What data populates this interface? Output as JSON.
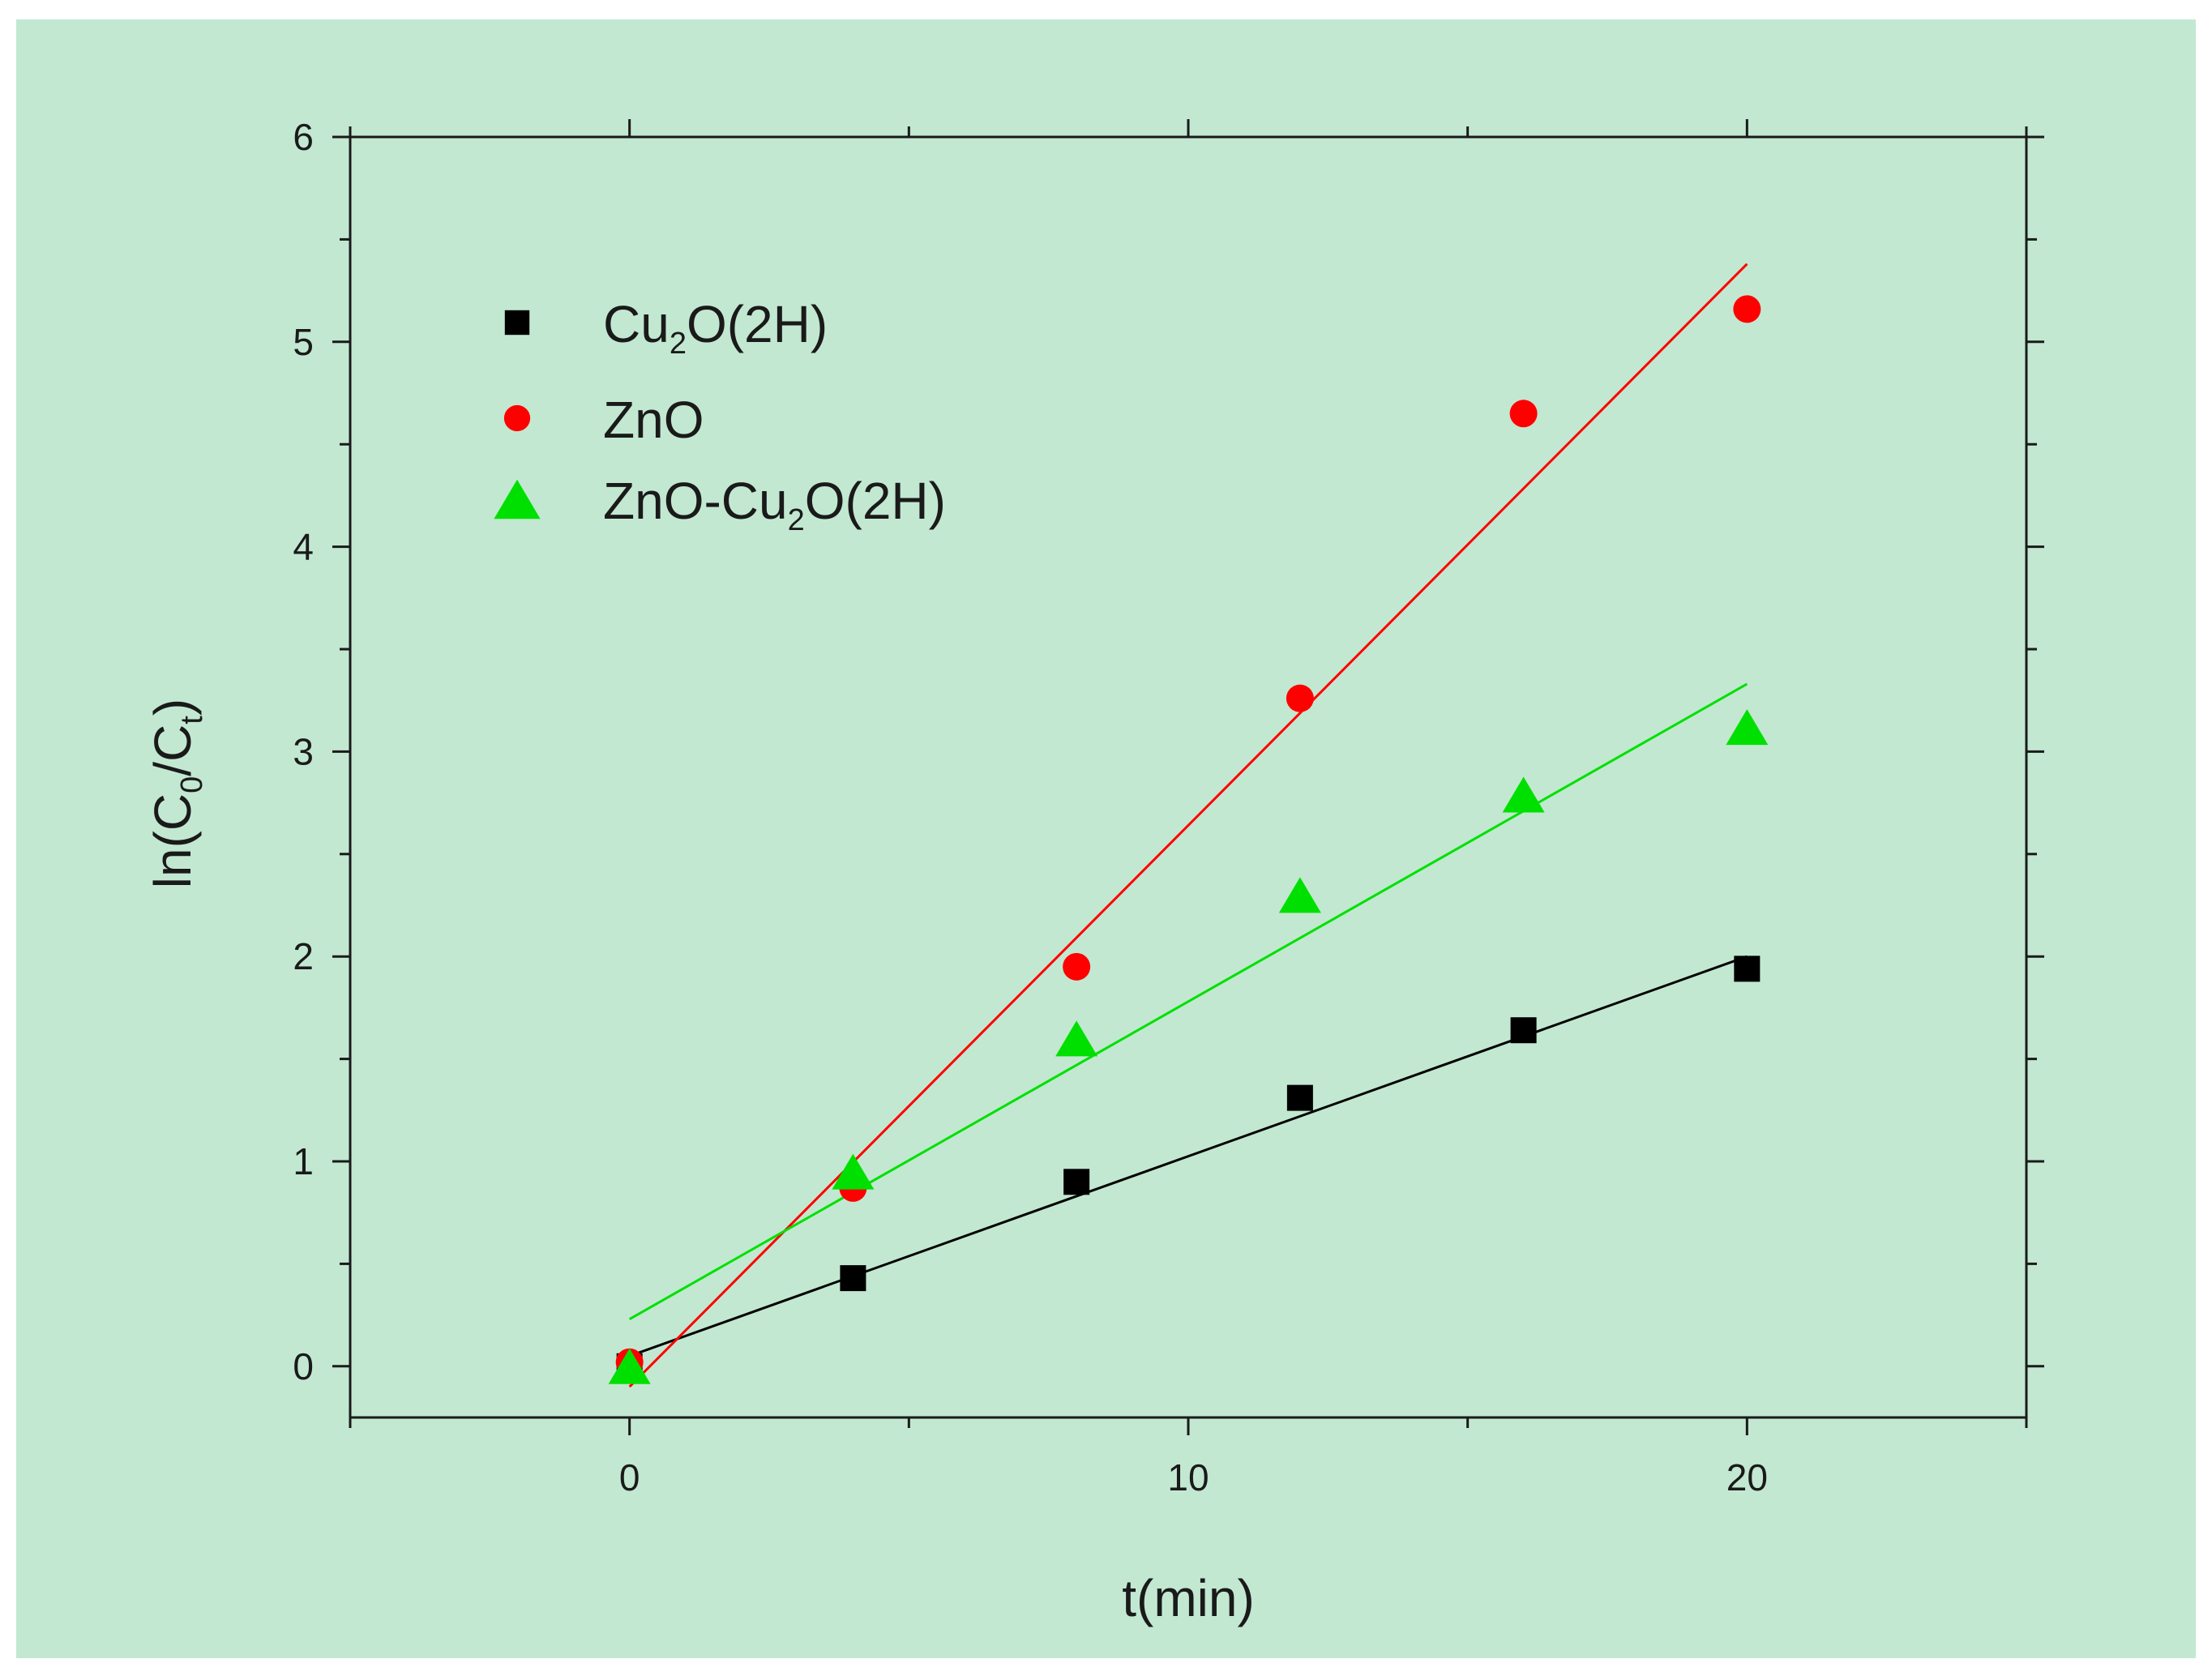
{
  "chart_data": {
    "type": "scatter",
    "title": "",
    "xlabel": "t(min)",
    "ylabel": "ln(C0/Ct)",
    "ylabel_parts": {
      "pre": "ln(C",
      "sub0": "0",
      "mid": "/C",
      "subt": "t",
      "post": ")"
    },
    "xlim": [
      -5,
      25
    ],
    "ylim": [
      -0.25,
      6
    ],
    "xticks": [
      0,
      10,
      20
    ],
    "xtick_labels": [
      "0",
      "10",
      "20"
    ],
    "yticks": [
      0,
      1,
      2,
      3,
      4,
      5,
      6
    ],
    "ytick_labels": [
      "0",
      "1",
      "2",
      "3",
      "4",
      "5",
      "6"
    ],
    "grid": false,
    "legend_position": "top-left",
    "x": [
      0,
      4,
      8,
      12,
      16,
      20
    ],
    "series": [
      {
        "name": "Cu2O(2H)",
        "legend": {
          "pre": "Cu",
          "sub": "2",
          "post": "O(2H)"
        },
        "marker": "square",
        "color": "#000000",
        "values": [
          0.0,
          0.43,
          0.9,
          1.31,
          1.64,
          1.94
        ],
        "fit": {
          "x": [
            0,
            20
          ],
          "y": [
            0.05,
            2.0
          ]
        }
      },
      {
        "name": "ZnO",
        "legend": {
          "pre": "ZnO",
          "sub": "",
          "post": ""
        },
        "marker": "circle",
        "color": "#ff0000",
        "values": [
          0.02,
          0.87,
          1.95,
          3.26,
          4.65,
          5.16
        ],
        "fit": {
          "x": [
            0,
            20
          ],
          "y": [
            -0.1,
            5.38
          ]
        }
      },
      {
        "name": "ZnO-Cu2O(2H)",
        "legend": {
          "pre": "ZnO-Cu",
          "sub": "2",
          "post": "O(2H)"
        },
        "marker": "triangle",
        "color": "#00e000",
        "values": [
          0.0,
          0.95,
          1.6,
          2.3,
          2.79,
          3.12
        ],
        "fit": {
          "x": [
            0,
            20
          ],
          "y": [
            0.23,
            3.33
          ]
        }
      }
    ]
  }
}
